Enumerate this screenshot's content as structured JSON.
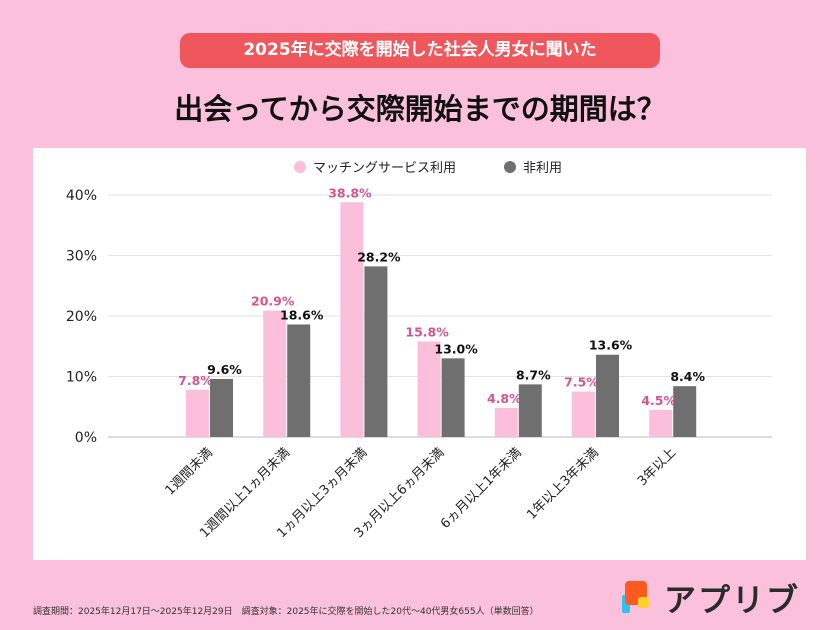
{
  "header": {
    "subtitle": "2025年に交際を開始した社会人男女に聞いた",
    "title": "出会ってから交際開始までの期間は？"
  },
  "footer": {
    "note": "調査期間：2025年12月17日～2025年12月29日　調査対象：2025年に交際を開始した20代～40代男女655人（単数回答）"
  },
  "logo": {
    "text": "アプリブ"
  },
  "chart_data": {
    "type": "bar",
    "categories": [
      "1週間未満",
      "1週間以上1ヵ月未満",
      "1ヵ月以上3ヵ月未満",
      "3ヵ月以上6ヵ月未満",
      "6ヵ月以上1年未満",
      "1年以上3年未満",
      "3年以上"
    ],
    "series": [
      {
        "name": "マッチングサービス利用",
        "values": [
          7.8,
          20.9,
          38.8,
          15.8,
          4.8,
          7.5,
          4.5
        ],
        "color": "#fbbfdc",
        "label_color": "#d9548e"
      },
      {
        "name": "非利用",
        "values": [
          9.6,
          18.6,
          28.2,
          13.0,
          8.7,
          13.6,
          8.4
        ],
        "color": "#6f6f6f",
        "label_color": "#111111"
      }
    ],
    "yticks": [
      "0%",
      "10%",
      "20%",
      "30%",
      "40%"
    ],
    "ylim": [
      0,
      40
    ],
    "grid": true,
    "legend": "top"
  }
}
